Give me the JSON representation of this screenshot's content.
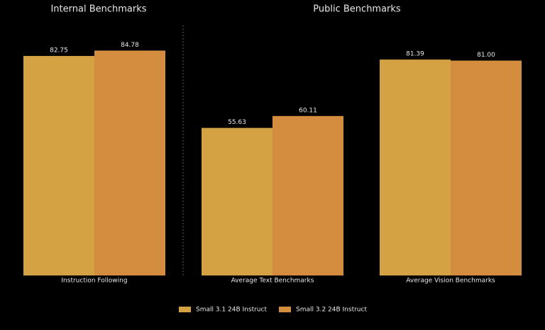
{
  "chart_data": [
    {
      "type": "bar",
      "title": "Internal Benchmarks",
      "categories": [
        "Instruction Following"
      ],
      "series": [
        {
          "name": "Small 3.1 24B Instruct",
          "color": "#d4a143",
          "values": [
            82.75
          ],
          "value_labels": [
            "82.75"
          ]
        },
        {
          "name": "Small 3.2 24B Instruct",
          "color": "#d48d3e",
          "values": [
            84.78
          ],
          "value_labels": [
            "84.78"
          ]
        }
      ]
    },
    {
      "type": "bar",
      "title": "Public Benchmarks",
      "categories": [
        "Average Text Benchmarks",
        "Average Vision Benchmarks"
      ],
      "series": [
        {
          "color": "#d4a143",
          "values": [
            55.63,
            81.39
          ],
          "value_labels": [
            "55.63",
            "81.39"
          ]
        },
        {
          "color": "#d48d3e",
          "values": [
            60.11,
            81.0
          ],
          "value_labels": [
            "60.11",
            "81.00"
          ]
        }
      ]
    }
  ]
}
